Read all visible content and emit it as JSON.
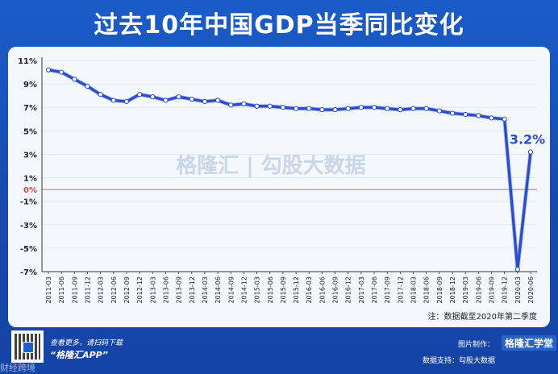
{
  "title": "过去10年中国GDP当季同比变化",
  "chart_data": {
    "type": "line",
    "title": "过去10年中国GDP当季同比变化",
    "ylim": [
      -7,
      11
    ],
    "y_ticks": [
      "11%",
      "9%",
      "7%",
      "5%",
      "3%",
      "1%",
      "0%",
      "-1%",
      "-3%",
      "-5%",
      "-7%"
    ],
    "y_tick_values": [
      11,
      9,
      7,
      5,
      3,
      1,
      0,
      -1,
      -3,
      -5,
      -7
    ],
    "categories": [
      "2011-03",
      "2011-06",
      "2011-09",
      "2011-12",
      "2012-03",
      "2012-06",
      "2012-09",
      "2012-12",
      "2013-03",
      "2013-06",
      "2013-09",
      "2013-12",
      "2014-03",
      "2014-06",
      "2014-09",
      "2014-12",
      "2015-03",
      "2015-06",
      "2015-09",
      "2015-12",
      "2016-03",
      "2016-06",
      "2016-09",
      "2016-12",
      "2017-03",
      "2017-06",
      "2017-09",
      "2017-12",
      "2018-03",
      "2018-06",
      "2018-09",
      "2018-12",
      "2019-03",
      "2019-06",
      "2019-09",
      "2019-12",
      "2020-03",
      "2020-06"
    ],
    "series": [
      {
        "values": [
          10.2,
          10.0,
          9.4,
          8.8,
          8.1,
          7.6,
          7.5,
          8.1,
          7.9,
          7.6,
          7.9,
          7.7,
          7.5,
          7.6,
          7.2,
          7.3,
          7.1,
          7.1,
          7.0,
          6.9,
          6.9,
          6.8,
          6.8,
          6.9,
          7.0,
          7.0,
          6.9,
          6.8,
          6.9,
          6.9,
          6.7,
          6.5,
          6.4,
          6.3,
          6.1,
          6.0,
          -6.8,
          3.2
        ]
      }
    ],
    "zero_line_color": "#e06060",
    "line_color": "#2a4bd0",
    "last_value_label": "3.2%",
    "watermark": "格隆汇 | 勾股大数据",
    "note": "注：数据截至2020年第二季度"
  },
  "footer": {
    "scan_text": "查看更多，请扫码下载",
    "app_text": "“格隆汇APP”",
    "maker_label": "图片制作：",
    "maker": "格隆汇学堂",
    "source": "数据支持：勾股大数据",
    "corner": "财经跨境"
  }
}
